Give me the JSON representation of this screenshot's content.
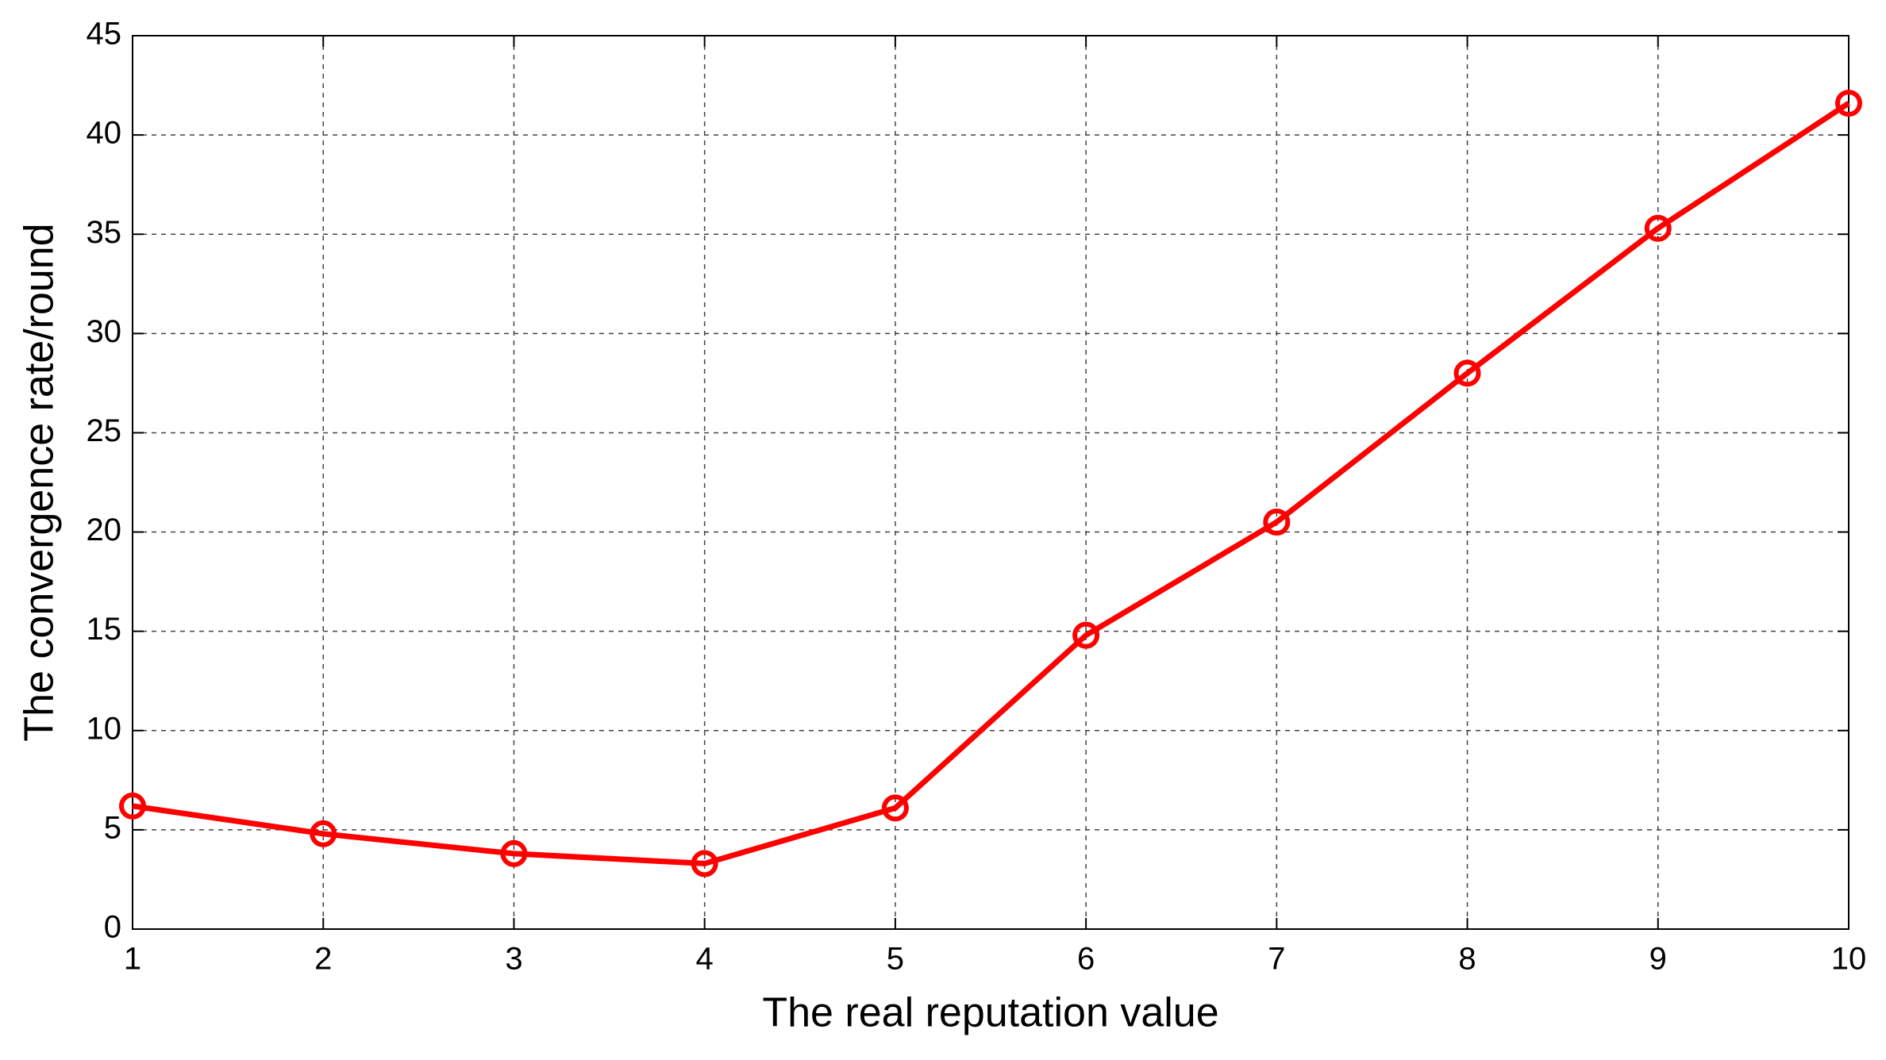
{
  "chart_data": {
    "type": "line",
    "xlabel": "The real reputation value",
    "ylabel": "The convergence rate/round",
    "x": [
      1,
      2,
      3,
      4,
      5,
      6,
      7,
      8,
      9,
      10
    ],
    "series": [
      {
        "color": "#ff0000",
        "marker": "circle",
        "values": [
          6.2,
          4.8,
          3.8,
          3.3,
          6.1,
          14.8,
          20.5,
          28.0,
          35.3,
          41.6
        ]
      }
    ],
    "xlim": [
      1,
      10
    ],
    "xticks": [
      1,
      2,
      3,
      4,
      5,
      6,
      7,
      8,
      9,
      10
    ],
    "ylim": [
      0,
      45
    ],
    "yticks": [
      0,
      5,
      10,
      15,
      20,
      25,
      30,
      35,
      40,
      45
    ],
    "grid": true
  }
}
